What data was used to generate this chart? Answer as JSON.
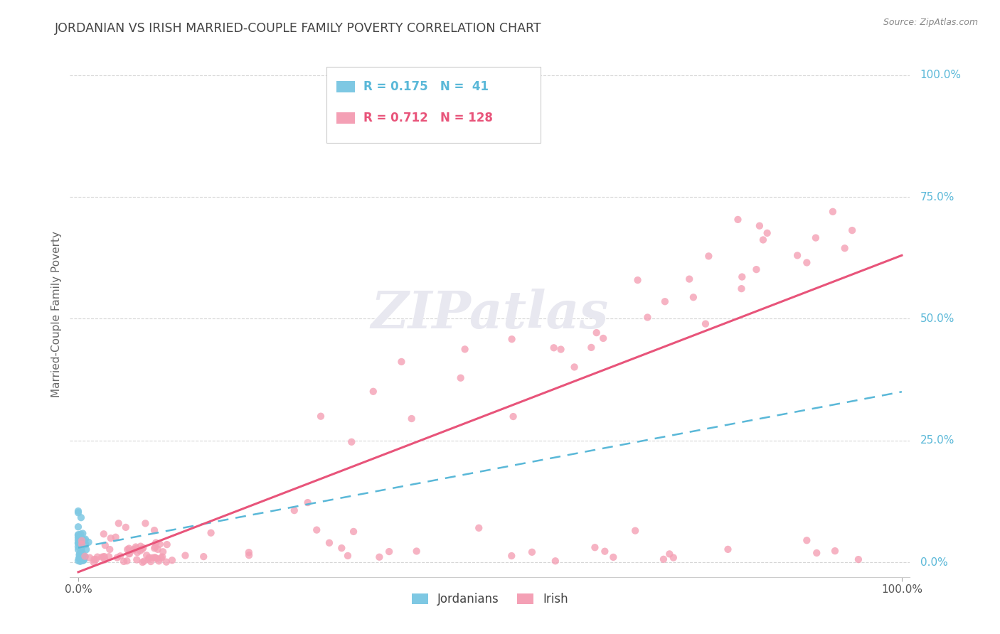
{
  "title": "JORDANIAN VS IRISH MARRIED-COUPLE FAMILY POVERTY CORRELATION CHART",
  "source": "Source: ZipAtlas.com",
  "ylabel": "Married-Couple Family Poverty",
  "jordanian_color": "#7ec8e3",
  "irish_color": "#f4a0b5",
  "jordanian_line_color": "#5ab8d8",
  "irish_line_color": "#e8547a",
  "grid_color": "#cccccc",
  "background_color": "#ffffff",
  "title_color": "#444444",
  "ytick_color": "#5ab8d8",
  "watermark_color": "#e8e8f0",
  "R_jordan": 0.175,
  "N_jordan": 41,
  "R_irish": 0.712,
  "N_irish": 128,
  "jordan_seed": 10,
  "irish_seed": 20
}
